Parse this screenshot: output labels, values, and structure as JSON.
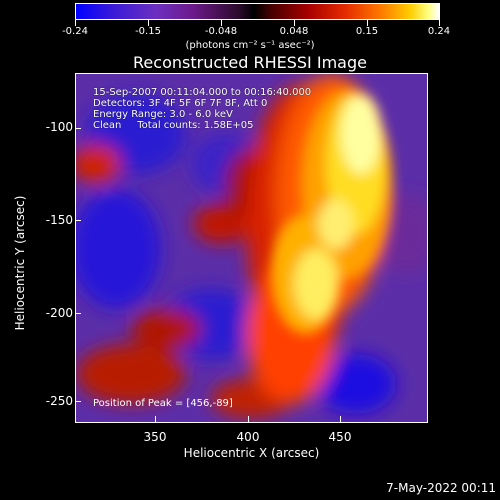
{
  "colorbar": {
    "ticks": [
      "-0.24",
      "-0.15",
      "-0.048",
      "0.048",
      "0.15",
      "0.24"
    ],
    "units": "(photons cm⁻² s⁻¹ asec⁻²)"
  },
  "title": "Reconstructed RHESSI Image",
  "info": {
    "time_range": "15-Sep-2007 00:11:04.000 to 00:16:40.000",
    "detectors": "Detectors: 3F 4F 5F 6F 7F 8F, Att 0",
    "energy": "Energy Range: 3.0 - 6.0 keV",
    "clean": "Clean     Total counts: 1.58E+05"
  },
  "peak": "Position of Peak = [456,-89]",
  "axes": {
    "xlabel": "Heliocentric X (arcsec)",
    "ylabel": "Heliocentric Y (arcsec)",
    "xticks": [
      "350",
      "400",
      "450"
    ],
    "yticks": [
      "-100",
      "-150",
      "-200",
      "-250"
    ]
  },
  "date": "7-May-2022 00:11"
}
